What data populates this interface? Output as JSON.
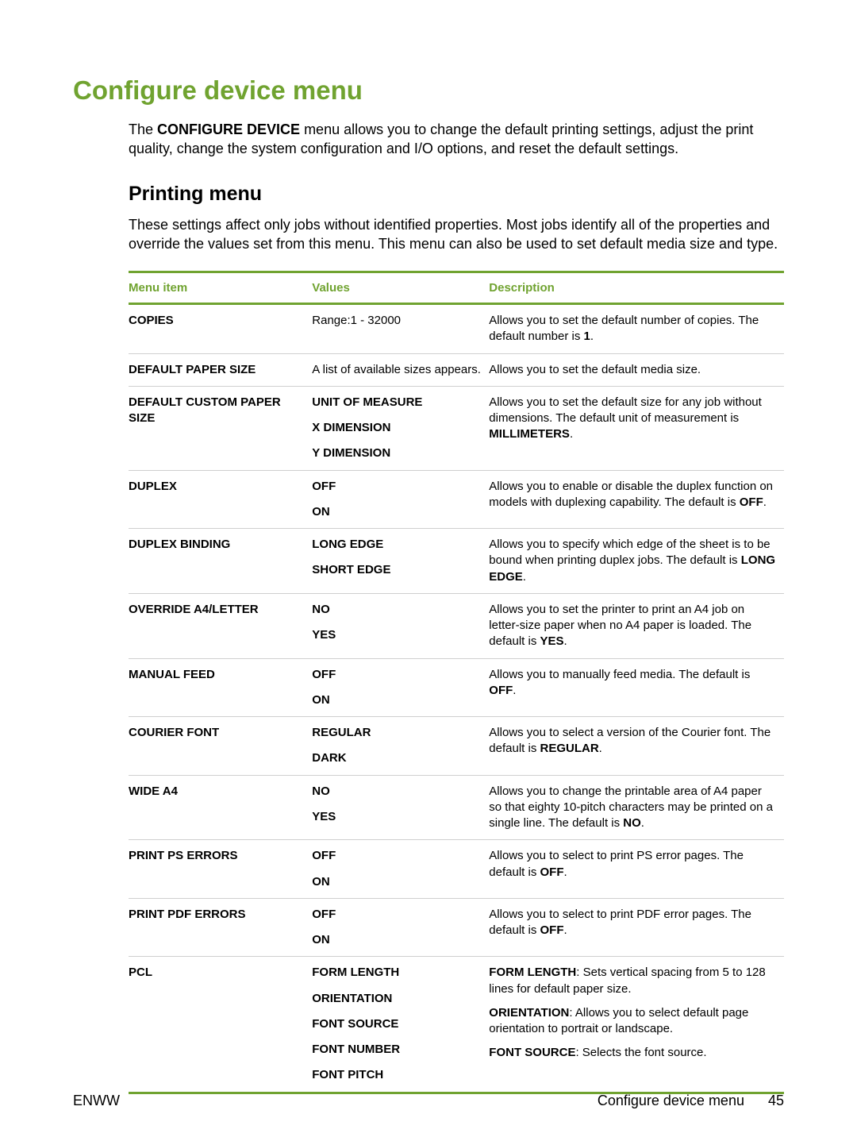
{
  "colors": {
    "accent": "#70a330",
    "text": "#000000",
    "rule": "#cfcfcf",
    "bg": "#ffffff"
  },
  "title": "Configure device menu",
  "intro_pre": "The ",
  "intro_bold": "CONFIGURE DEVICE",
  "intro_post": " menu allows you to change the default printing settings, adjust the print quality, change the system configuration and I/O options, and reset the default settings.",
  "subtitle": "Printing menu",
  "intro2": "These settings affect only jobs without identified properties. Most jobs identify all of the properties and override the values set from this menu. This menu can also be used to set default media size and type.",
  "headers": {
    "item": "Menu item",
    "values": "Values",
    "desc": "Description"
  },
  "rows": {
    "copies": {
      "item": "COPIES",
      "value": "Range:1 - 32000",
      "desc_a": "Allows you to set the default number of copies. The default number is ",
      "desc_b": "1",
      "desc_c": "."
    },
    "paper": {
      "item": "DEFAULT PAPER SIZE",
      "value": "A list of available sizes appears.",
      "desc": "Allows you to set the default media size."
    },
    "custom": {
      "item": "DEFAULT CUSTOM PAPER SIZE",
      "v1": "UNIT OF MEASURE",
      "v2": "X DIMENSION",
      "v3": "Y DIMENSION",
      "desc_a": "Allows you to set the default size for any job without dimensions. The default unit of measurement is ",
      "desc_b": "MILLIMETERS",
      "desc_c": "."
    },
    "duplex": {
      "item": "DUPLEX",
      "v1": "OFF",
      "v2": "ON",
      "desc_a": "Allows you to enable or disable the duplex function on models with duplexing capability. The default is ",
      "desc_b": "OFF",
      "desc_c": "."
    },
    "dbind": {
      "item": "DUPLEX BINDING",
      "v1": "LONG EDGE",
      "v2": "SHORT EDGE",
      "desc_a": "Allows you to specify which edge of the sheet is to be bound when printing duplex jobs. The default is ",
      "desc_b": "LONG EDGE",
      "desc_c": "."
    },
    "override": {
      "item": "OVERRIDE A4/LETTER",
      "v1": "NO",
      "v2": "YES",
      "desc_a": "Allows you to set the printer to print an A4 job on letter-size paper when no A4 paper is loaded. The default is ",
      "desc_b": "YES",
      "desc_c": "."
    },
    "manual": {
      "item": "MANUAL FEED",
      "v1": "OFF",
      "v2": "ON",
      "desc_a": "Allows you to manually feed media. The default is ",
      "desc_b": "OFF",
      "desc_c": "."
    },
    "courier": {
      "item": "COURIER FONT",
      "v1": "REGULAR",
      "v2": "DARK",
      "desc_a": "Allows you to select a version of the Courier font. The default is ",
      "desc_b": "REGULAR",
      "desc_c": "."
    },
    "widea4": {
      "item": "WIDE A4",
      "v1": "NO",
      "v2": "YES",
      "desc_a": "Allows you to change the printable area of A4 paper so that eighty 10-pitch characters may be printed on a single line. The default is ",
      "desc_b": "NO",
      "desc_c": "."
    },
    "ps": {
      "item": "PRINT PS ERRORS",
      "v1": "OFF",
      "v2": "ON",
      "desc_a": "Allows you to select to print PS error pages. The default is ",
      "desc_b": "OFF",
      "desc_c": "."
    },
    "pdf": {
      "item": "PRINT PDF ERRORS",
      "v1": "OFF",
      "v2": "ON",
      "desc_a": "Allows you to select to print PDF error pages. The default is ",
      "desc_b": "OFF",
      "desc_c": "."
    },
    "pcl": {
      "item": "PCL",
      "v1": "FORM LENGTH",
      "v2": "ORIENTATION",
      "v3": "FONT SOURCE",
      "v4": "FONT NUMBER",
      "v5": "FONT PITCH",
      "p1b": "FORM LENGTH",
      "p1": ": Sets vertical spacing from 5 to 128 lines for default paper size.",
      "p2b": "ORIENTATION",
      "p2": ": Allows you to select default page orientation to portrait or landscape.",
      "p3b": "FONT SOURCE",
      "p3": ": Selects the font source."
    }
  },
  "footer": {
    "left": "ENWW",
    "label": "Configure device menu",
    "page": "45"
  }
}
